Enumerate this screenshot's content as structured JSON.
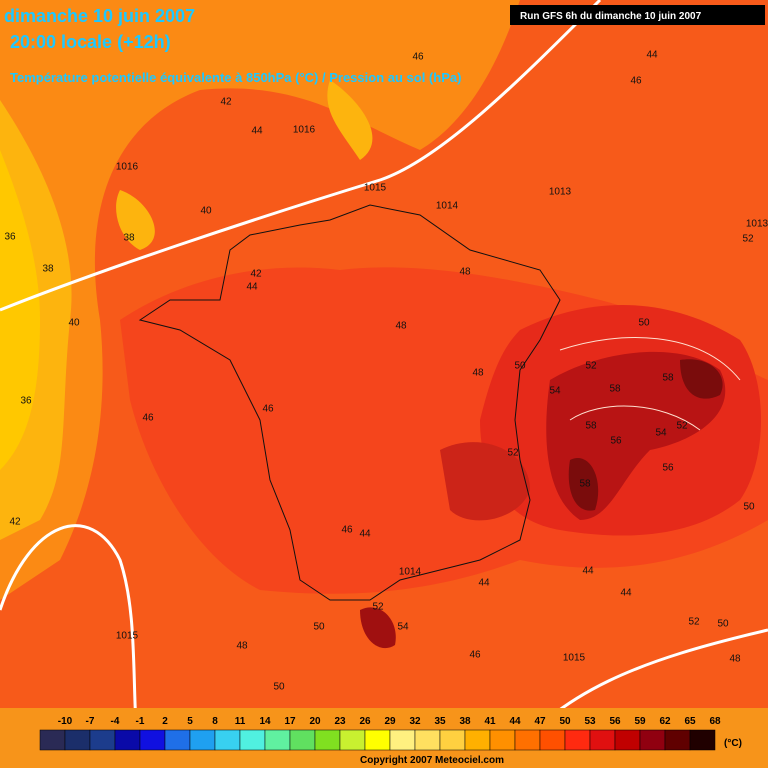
{
  "header": {
    "date": "dimanche 10 juin 2007",
    "time": "20:00 locale (+12h)",
    "subtitle": "Température potentielle équivalente à 850hPa (°C) / Pression au sol (hPa)",
    "run": "Run GFS 6h du dimanche 10 juin 2007"
  },
  "contour_labels": [
    "46",
    "44",
    "46",
    "42",
    "44",
    "1016",
    "1016",
    "1015",
    "1013",
    "1014",
    "40",
    "38",
    "36",
    "38",
    "48",
    "42",
    "44",
    "40",
    "50",
    "48",
    "52",
    "50",
    "58",
    "58",
    "48",
    "54",
    "36",
    "46",
    "46",
    "58",
    "54",
    "56",
    "52",
    "52",
    "56",
    "58",
    "50",
    "42",
    "46",
    "44",
    "1014",
    "44",
    "44",
    "44",
    "52",
    "54",
    "50",
    "52",
    "50",
    "1015",
    "48",
    "46",
    "1015",
    "48",
    "50",
    "1013",
    "52"
  ],
  "legend": {
    "ticks": [
      -10,
      -7,
      -4,
      -1,
      2,
      5,
      8,
      11,
      14,
      17,
      20,
      23,
      26,
      29,
      32,
      35,
      38,
      41,
      44,
      47,
      50,
      53,
      56,
      59,
      62,
      65,
      68
    ],
    "unit": "(°C)"
  },
  "footer": {
    "copyright": "Copyright 2007 Meteociel.com"
  }
}
